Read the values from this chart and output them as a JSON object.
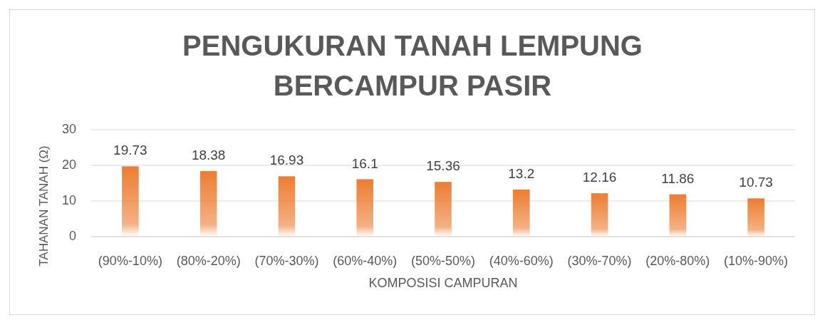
{
  "chart_data": {
    "type": "bar",
    "title": "PENGUKURAN TANAH LEMPUNG BERCAMPUR PASIR",
    "xlabel": "KOMPOSISI CAMPURAN",
    "ylabel": "TAHANAN TANAH (Ω)",
    "categories": [
      "(90%-10%)",
      "(80%-20%)",
      "(70%-30%)",
      "(60%-40%)",
      "(50%-50%)",
      "(40%-60%)",
      "(30%-70%)",
      "(20%-80%)",
      "(10%-90%)"
    ],
    "values": [
      19.73,
      18.38,
      16.93,
      16.1,
      15.36,
      13.2,
      12.16,
      11.86,
      10.73
    ],
    "color": "#ed7d31",
    "ylim": [
      0,
      30
    ],
    "yticks": [
      0,
      10,
      20,
      30
    ],
    "grid": "y",
    "data_labels": true
  }
}
